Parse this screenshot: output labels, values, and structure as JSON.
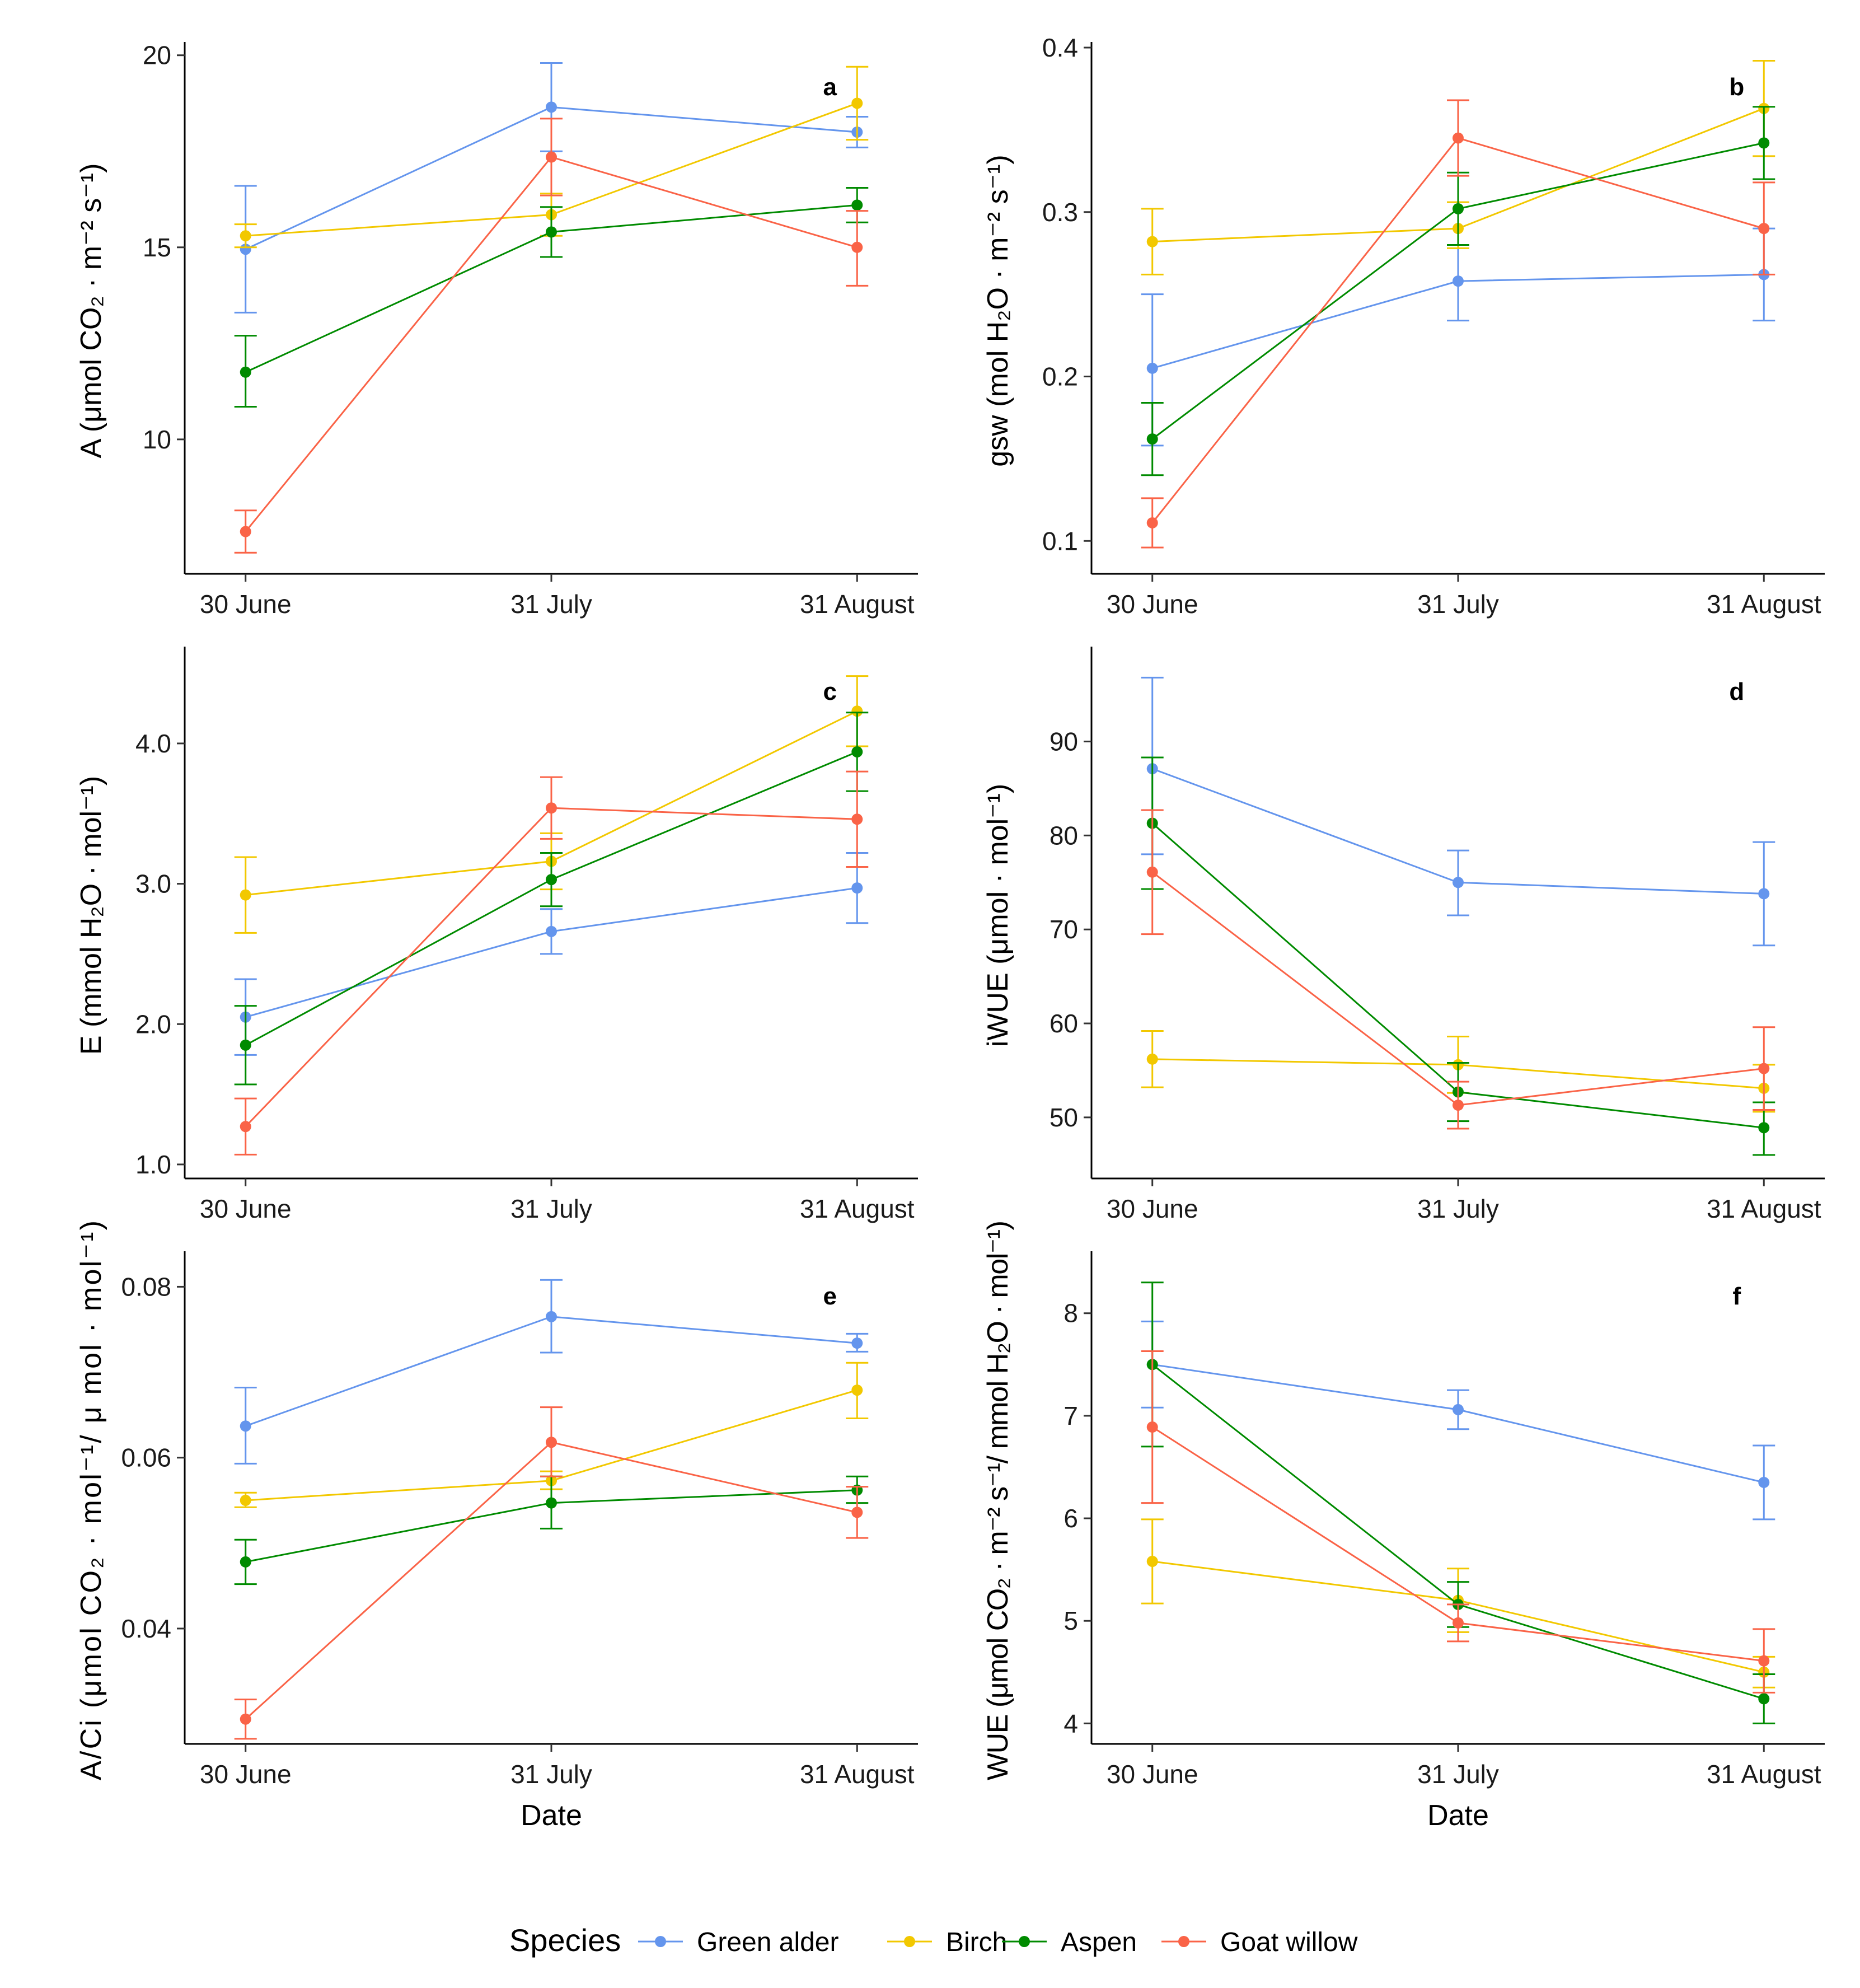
{
  "figure": {
    "xlabel": "Date",
    "species": [
      {
        "name": "Green alder",
        "color": "#6495ED"
      },
      {
        "name": "Birch",
        "color": "#F2C800"
      },
      {
        "name": "Aspen",
        "color": "#008B00"
      },
      {
        "name": "Goat willow",
        "color": "#FA6347"
      }
    ]
  },
  "legend": {
    "title": "Species",
    "placement": "bottom"
  },
  "chart_data": [
    {
      "type": "line",
      "panel": "a",
      "ylabel": "A (μmol CO₂ · m⁻² s⁻¹)",
      "categories": [
        "30 June",
        "31 July",
        "31 August"
      ],
      "ylim": [
        6.5,
        20.2
      ],
      "yticks": [
        10,
        15,
        20
      ],
      "ytick_labels": [
        "10",
        "15",
        "20"
      ],
      "xlabel_shown": false,
      "series": [
        {
          "name": "Green alder",
          "values": [
            14.95,
            18.65,
            18.0
          ],
          "lower": [
            13.3,
            17.5,
            17.6
          ],
          "upper": [
            16.6,
            19.8,
            18.4
          ]
        },
        {
          "name": "Birch",
          "values": [
            15.3,
            15.85,
            18.75
          ],
          "lower": [
            15.0,
            15.3,
            17.8
          ],
          "upper": [
            15.6,
            16.4,
            19.7
          ]
        },
        {
          "name": "Aspen",
          "values": [
            11.75,
            15.4,
            16.1
          ],
          "lower": [
            10.85,
            14.75,
            15.65
          ],
          "upper": [
            12.7,
            16.05,
            16.55
          ]
        },
        {
          "name": "Goat willow",
          "values": [
            7.6,
            17.35,
            15.0
          ],
          "lower": [
            7.05,
            16.35,
            14.0
          ],
          "upper": [
            8.15,
            18.35,
            15.95
          ]
        }
      ]
    },
    {
      "type": "line",
      "panel": "b",
      "ylabel": "gsw (mol H₂O · m⁻² s⁻¹)",
      "categories": [
        "30 June",
        "31 July",
        "31 August"
      ],
      "ylim": [
        0.08,
        0.4
      ],
      "yticks": [
        0.1,
        0.2,
        0.3,
        0.4
      ],
      "ytick_labels": [
        "0.1",
        "0.2",
        "0.3",
        "0.4"
      ],
      "xlabel_shown": false,
      "series": [
        {
          "name": "Green alder",
          "values": [
            0.205,
            0.258,
            0.262
          ],
          "lower": [
            0.158,
            0.234,
            0.234
          ],
          "upper": [
            0.25,
            0.28,
            0.29
          ]
        },
        {
          "name": "Birch",
          "values": [
            0.282,
            0.29,
            0.363
          ],
          "lower": [
            0.262,
            0.278,
            0.334
          ],
          "upper": [
            0.302,
            0.306,
            0.392
          ]
        },
        {
          "name": "Aspen",
          "values": [
            0.162,
            0.302,
            0.342
          ],
          "lower": [
            0.14,
            0.28,
            0.32
          ],
          "upper": [
            0.184,
            0.324,
            0.364
          ]
        },
        {
          "name": "Goat willow",
          "values": [
            0.111,
            0.345,
            0.29
          ],
          "lower": [
            0.096,
            0.322,
            0.262
          ],
          "upper": [
            0.126,
            0.368,
            0.318
          ]
        }
      ]
    },
    {
      "type": "line",
      "panel": "c",
      "ylabel": "E (mmol H₂O · mol⁻¹)",
      "categories": [
        "30 June",
        "31 July",
        "31 August"
      ],
      "ylim": [
        0.9,
        4.65
      ],
      "yticks": [
        1.0,
        2.0,
        3.0,
        4.0
      ],
      "ytick_labels": [
        "1.0",
        "2.0",
        "3.0",
        "4.0"
      ],
      "xlabel_shown": false,
      "series": [
        {
          "name": "Green alder",
          "values": [
            2.05,
            2.66,
            2.97
          ],
          "lower": [
            1.78,
            2.5,
            2.72
          ],
          "upper": [
            2.32,
            2.82,
            3.22
          ]
        },
        {
          "name": "Birch",
          "values": [
            2.92,
            3.16,
            4.23
          ],
          "lower": [
            2.65,
            2.96,
            3.98
          ],
          "upper": [
            3.19,
            3.36,
            4.48
          ]
        },
        {
          "name": "Aspen",
          "values": [
            1.85,
            3.03,
            3.94
          ],
          "lower": [
            1.57,
            2.84,
            3.66
          ],
          "upper": [
            2.13,
            3.22,
            4.22
          ]
        },
        {
          "name": "Goat willow",
          "values": [
            1.27,
            3.54,
            3.46
          ],
          "lower": [
            1.07,
            3.32,
            3.12
          ],
          "upper": [
            1.47,
            3.76,
            3.8
          ]
        }
      ]
    },
    {
      "type": "line",
      "panel": "d",
      "ylabel": "iWUE (μmol · mol⁻¹)",
      "categories": [
        "30 June",
        "31 July",
        "31 August"
      ],
      "ylim": [
        43.5,
        99.5
      ],
      "yticks": [
        50,
        60,
        70,
        80,
        90
      ],
      "ytick_labels": [
        "50",
        "60",
        "70",
        "80",
        "90"
      ],
      "xlabel_shown": false,
      "series": [
        {
          "name": "Green alder",
          "values": [
            87.1,
            75.0,
            73.8
          ],
          "lower": [
            78.0,
            71.5,
            68.3
          ],
          "upper": [
            96.8,
            78.4,
            79.3
          ]
        },
        {
          "name": "Birch",
          "values": [
            56.2,
            55.6,
            53.1
          ],
          "lower": [
            53.2,
            52.6,
            50.6
          ],
          "upper": [
            59.2,
            58.6,
            55.6
          ]
        },
        {
          "name": "Aspen",
          "values": [
            81.3,
            52.7,
            48.9
          ],
          "lower": [
            74.3,
            49.6,
            46.0
          ],
          "upper": [
            88.3,
            55.8,
            51.6
          ]
        },
        {
          "name": "Goat willow",
          "values": [
            76.1,
            51.3,
            55.2
          ],
          "lower": [
            69.5,
            48.8,
            50.8
          ],
          "upper": [
            82.7,
            53.8,
            59.6
          ]
        }
      ]
    },
    {
      "type": "line",
      "panel": "e",
      "ylabel": "A/Ci (μmol CO₂ · mol⁻¹/ μ mol · mol⁻¹)",
      "categories": [
        "30 June",
        "31 July",
        "31 August"
      ],
      "ylim": [
        0.0265,
        0.0835
      ],
      "yticks": [
        0.04,
        0.06,
        0.08
      ],
      "ytick_labels": [
        "0.04",
        "0.06",
        "0.08"
      ],
      "xlabel_shown": true,
      "series": [
        {
          "name": "Green alder",
          "values": [
            0.0637,
            0.0765,
            0.0734
          ],
          "lower": [
            0.0593,
            0.0723,
            0.0724
          ],
          "upper": [
            0.0682,
            0.0808,
            0.0745
          ]
        },
        {
          "name": "Birch",
          "values": [
            0.055,
            0.0573,
            0.0679
          ],
          "lower": [
            0.0542,
            0.0563,
            0.0646
          ],
          "upper": [
            0.0559,
            0.0584,
            0.0711
          ]
        },
        {
          "name": "Aspen",
          "values": [
            0.0478,
            0.0547,
            0.0562
          ],
          "lower": [
            0.0452,
            0.0517,
            0.0547
          ],
          "upper": [
            0.0504,
            0.0578,
            0.0578
          ]
        },
        {
          "name": "Goat willow",
          "values": [
            0.0294,
            0.0618,
            0.0536
          ],
          "lower": [
            0.0271,
            0.0578,
            0.0506
          ],
          "upper": [
            0.0317,
            0.0659,
            0.0566
          ]
        }
      ]
    },
    {
      "type": "line",
      "panel": "f",
      "ylabel": "WUE (μmol CO₂ · m⁻² s⁻¹/ mmol H₂O · mol⁻¹)",
      "categories": [
        "30 June",
        "31 July",
        "31 August"
      ],
      "ylim": [
        3.8,
        8.55
      ],
      "yticks": [
        4,
        5,
        6,
        7,
        8
      ],
      "ytick_labels": [
        "4",
        "5",
        "6",
        "7",
        "8"
      ],
      "xlabel_shown": true,
      "series": [
        {
          "name": "Green alder",
          "values": [
            7.5,
            7.06,
            6.35
          ],
          "lower": [
            7.08,
            6.87,
            5.99
          ],
          "upper": [
            7.92,
            7.25,
            6.71
          ]
        },
        {
          "name": "Birch",
          "values": [
            5.58,
            5.2,
            4.5
          ],
          "lower": [
            5.17,
            4.89,
            4.35
          ],
          "upper": [
            5.99,
            5.51,
            4.65
          ]
        },
        {
          "name": "Aspen",
          "values": [
            7.5,
            5.16,
            4.24
          ],
          "lower": [
            6.7,
            4.94,
            4.0
          ],
          "upper": [
            8.3,
            5.38,
            4.48
          ]
        },
        {
          "name": "Goat willow",
          "values": [
            6.89,
            4.98,
            4.61
          ],
          "lower": [
            6.15,
            4.8,
            4.3
          ],
          "upper": [
            7.63,
            5.16,
            4.92
          ]
        }
      ]
    }
  ]
}
